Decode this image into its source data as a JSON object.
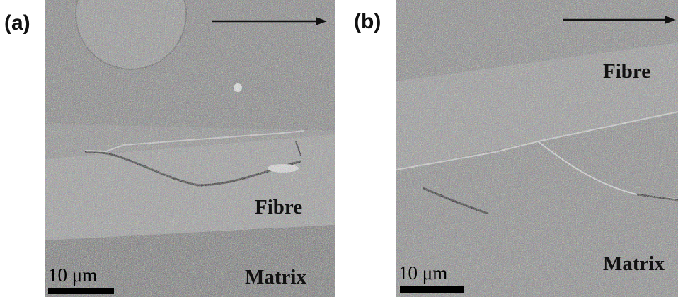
{
  "panels": [
    {
      "label": "(a)",
      "scale_bar": "10 μm",
      "region_labels": [
        "Fibre",
        "Matrix"
      ]
    },
    {
      "label": "(b)",
      "scale_bar": "10 μm",
      "region_labels": [
        "Fibre",
        "Matrix"
      ]
    }
  ]
}
